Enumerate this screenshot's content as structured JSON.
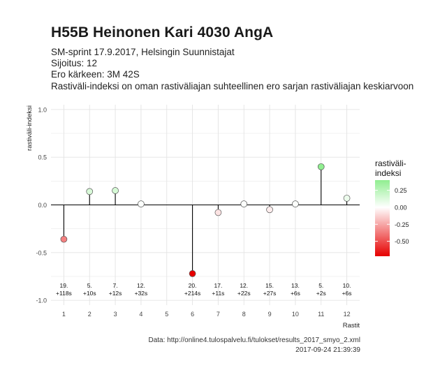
{
  "header": {
    "title": "H55B Heinonen Kari 4030 AngA",
    "subtitle_lines": [
      "SM-sprint 17.9.2017, Helsingin Suunnistajat",
      "Sijoitus: 12",
      "Ero kärkeen: 3M 42S",
      "Rastiväli-indeksi on oman rastiväliajan suhteellinen ero sarjan rastiväliajan keskiarvoon"
    ]
  },
  "caption": {
    "source": "Data: http://online4.tulospalvelu.fi/tulokset/results_2017_smyo_2.xml",
    "timestamp": "2017-09-24 21:39:39"
  },
  "chart_data": {
    "type": "lollipop",
    "xlabel": "Rastit",
    "ylabel": "rastiväli-indeksi",
    "x_ticks": [
      1,
      2,
      3,
      4,
      5,
      6,
      7,
      8,
      9,
      10,
      11,
      12
    ],
    "y_ticks": [
      -1.0,
      -0.5,
      0.0,
      0.5,
      1.0
    ],
    "y_tick_labels": [
      "-1.0",
      "-0.5",
      "0.0",
      "0.5",
      "1.0"
    ],
    "ylim": [
      -1.05,
      1.05
    ],
    "xlim": [
      0.5,
      12.5
    ],
    "grid": true,
    "points": [
      {
        "x": 1,
        "y": -0.36,
        "label": [
          "19.",
          "+118s"
        ]
      },
      {
        "x": 2,
        "y": 0.14,
        "label": [
          "5.",
          "+10s"
        ]
      },
      {
        "x": 3,
        "y": 0.15,
        "label": [
          "7.",
          "+12s"
        ]
      },
      {
        "x": 4,
        "y": 0.01,
        "label": [
          "12.",
          "+32s"
        ]
      },
      {
        "x": 6,
        "y": -0.72,
        "label": [
          "20.",
          "+214s"
        ]
      },
      {
        "x": 7,
        "y": -0.08,
        "label": [
          "17.",
          "+11s"
        ]
      },
      {
        "x": 8,
        "y": 0.01,
        "label": [
          "12.",
          "+22s"
        ]
      },
      {
        "x": 9,
        "y": -0.05,
        "label": [
          "15.",
          "+27s"
        ]
      },
      {
        "x": 10,
        "y": 0.01,
        "label": [
          "13.",
          "+6s"
        ]
      },
      {
        "x": 11,
        "y": 0.4,
        "label": [
          "5.",
          "+2s"
        ]
      },
      {
        "x": 12,
        "y": 0.07,
        "label": [
          "10.",
          "+6s"
        ]
      }
    ],
    "label_y": -0.92,
    "legend": {
      "title_lines": [
        "rastiväli-",
        "indeksi"
      ],
      "ticks": [
        0.25,
        0.0,
        -0.25,
        -0.5
      ],
      "tick_labels": [
        "0.25",
        "0.00",
        "-0.25",
        "-0.50"
      ],
      "range": [
        -0.72,
        0.4
      ],
      "placement": "right"
    },
    "colors": {
      "high": "#90ee90",
      "mid": "#ffffff",
      "low": "#e60000",
      "grid": "#e3e3e3",
      "zero_line": "#000000"
    }
  }
}
